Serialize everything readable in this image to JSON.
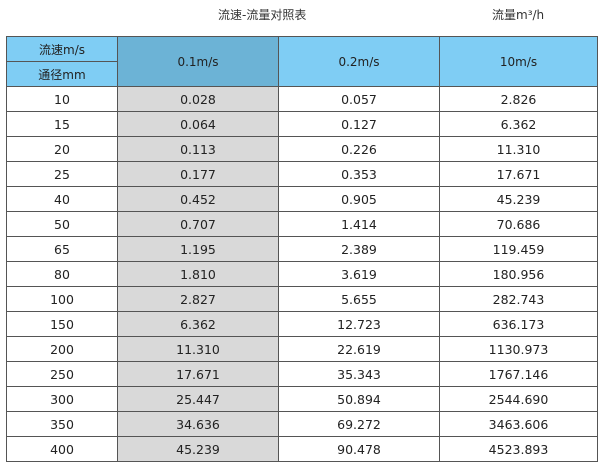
{
  "title": "流速-流量对照表",
  "unit_label": "流量m³/h",
  "header": {
    "velocity_label": "流速m/s",
    "diameter_label": "通径mm",
    "columns": [
      "0.1m/s",
      "0.2m/s",
      "10m/s"
    ]
  },
  "colors": {
    "header": "#7fcdf4",
    "header_selected": "#6cb3d6",
    "highlight_column": "#d9d9d9"
  },
  "rows": [
    [
      "10",
      "0.028",
      "0.057",
      "2.826"
    ],
    [
      "15",
      "0.064",
      "0.127",
      "6.362"
    ],
    [
      "20",
      "0.113",
      "0.226",
      "11.310"
    ],
    [
      "25",
      "0.177",
      "0.353",
      "17.671"
    ],
    [
      "40",
      "0.452",
      "0.905",
      "45.239"
    ],
    [
      "50",
      "0.707",
      "1.414",
      "70.686"
    ],
    [
      "65",
      "1.195",
      "2.389",
      "119.459"
    ],
    [
      "80",
      "1.810",
      "3.619",
      "180.956"
    ],
    [
      "100",
      "2.827",
      "5.655",
      "282.743"
    ],
    [
      "150",
      "6.362",
      "12.723",
      "636.173"
    ],
    [
      "200",
      "11.310",
      "22.619",
      "1130.973"
    ],
    [
      "250",
      "17.671",
      "35.343",
      "1767.146"
    ],
    [
      "300",
      "25.447",
      "50.894",
      "2544.690"
    ],
    [
      "350",
      "34.636",
      "69.272",
      "3463.606"
    ],
    [
      "400",
      "45.239",
      "90.478",
      "4523.893"
    ]
  ]
}
